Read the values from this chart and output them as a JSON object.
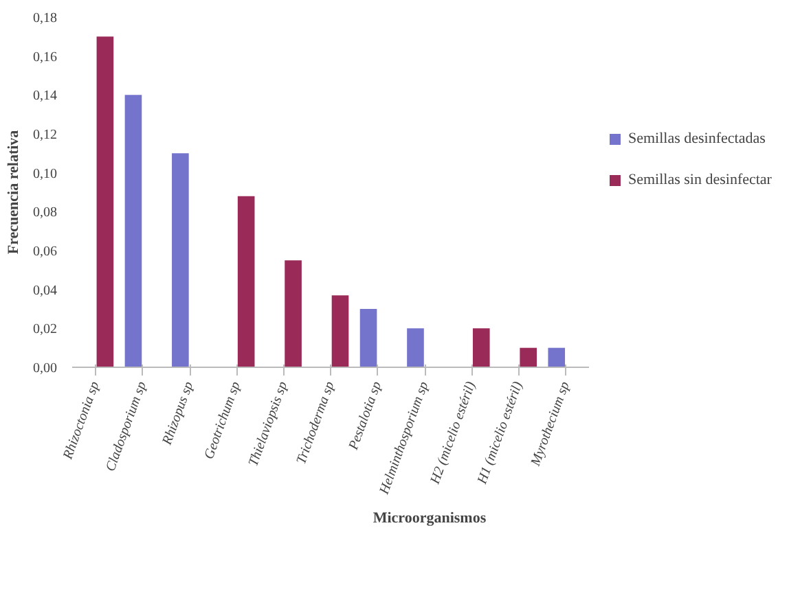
{
  "chart_data": {
    "type": "bar",
    "xlabel": "Microorganismos",
    "ylabel": "Frecuencia relativa",
    "categories": [
      "Rhizoctonia sp",
      "Cladosporium sp",
      "Rhizopus sp",
      "Geotrichum sp",
      "Thielaviopsis sp",
      "Trichoderma sp",
      "Pestalotia sp",
      "Helminthosporium sp",
      "H2 (micelio estéril)",
      "H1 (micelio estéril)",
      "Myrothecium sp"
    ],
    "series": [
      {
        "name": "Semillas desinfectadas",
        "color": "#7474cc",
        "values": [
          null,
          0.14,
          0.11,
          null,
          null,
          null,
          0.03,
          0.02,
          null,
          null,
          0.01
        ]
      },
      {
        "name": "Semillas sin desinfectar",
        "color": "#9a2a58",
        "values": [
          0.17,
          null,
          null,
          0.088,
          0.055,
          0.037,
          null,
          null,
          0.02,
          0.01,
          null
        ]
      }
    ],
    "ylim": [
      0,
      0.18
    ],
    "yticks": [
      {
        "value": 0,
        "label": "0,00"
      },
      {
        "value": 0.02,
        "label": "0,02"
      },
      {
        "value": 0.04,
        "label": "0,04"
      },
      {
        "value": 0.06,
        "label": "0,06"
      },
      {
        "value": 0.08,
        "label": "0,08"
      },
      {
        "value": 0.1,
        "label": "0,10"
      },
      {
        "value": 0.12,
        "label": "0,12"
      },
      {
        "value": 0.14,
        "label": "0,14"
      },
      {
        "value": 0.16,
        "label": "0,16"
      },
      {
        "value": 0.18,
        "label": "0,18"
      }
    ],
    "grid": false,
    "legend": "right"
  }
}
